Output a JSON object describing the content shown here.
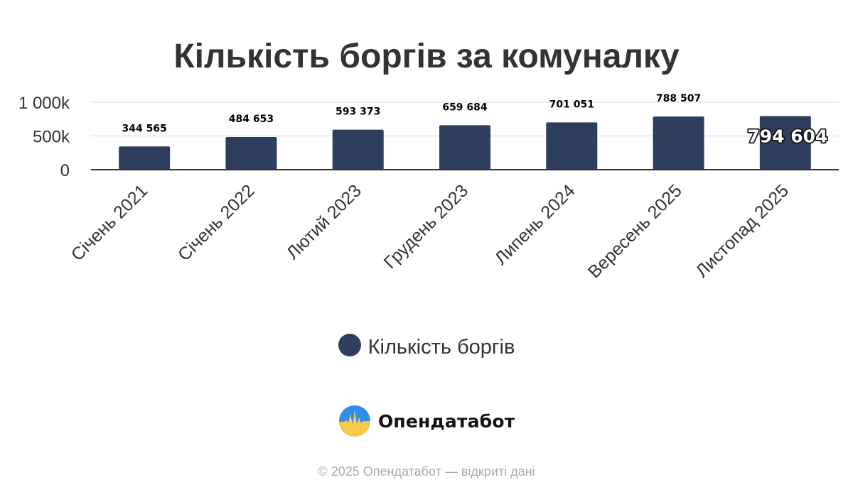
{
  "colors": {
    "bar": "#2e3f5e",
    "grid": "#e6e6e6",
    "axis": "#333333",
    "text": "#333333"
  },
  "brand": {
    "name": "Опендатабот",
    "logo_icon": "opendatabot-logo"
  },
  "footer": {
    "text": "© 2025 Опендатабот — відкриті дані"
  },
  "chart_data": {
    "type": "bar",
    "title": "Кількість боргів за комуналку",
    "categories": [
      "Січень 2021",
      "Січень 2022",
      "Лютий 2023",
      "Грудень 2023",
      "Липень 2024",
      "Вересень 2025",
      "Листопад 2025"
    ],
    "series": [
      {
        "name": "Кількість боргів",
        "values": [
          344565,
          484653,
          593373,
          659684,
          701051,
          788507,
          794604
        ]
      }
    ],
    "data_labels": [
      "344 565",
      "484 653",
      "593 373",
      "659 684",
      "701 051",
      "788 507",
      "794 604"
    ],
    "highlighted_label_index": 6,
    "y_ticks": [
      {
        "value": 0,
        "label": "0"
      },
      {
        "value": 500000,
        "label": "500k"
      },
      {
        "value": 1000000,
        "label": "1 000k"
      }
    ],
    "ylim": [
      0,
      1000000
    ],
    "grid": true,
    "legend_position": "bottom"
  }
}
